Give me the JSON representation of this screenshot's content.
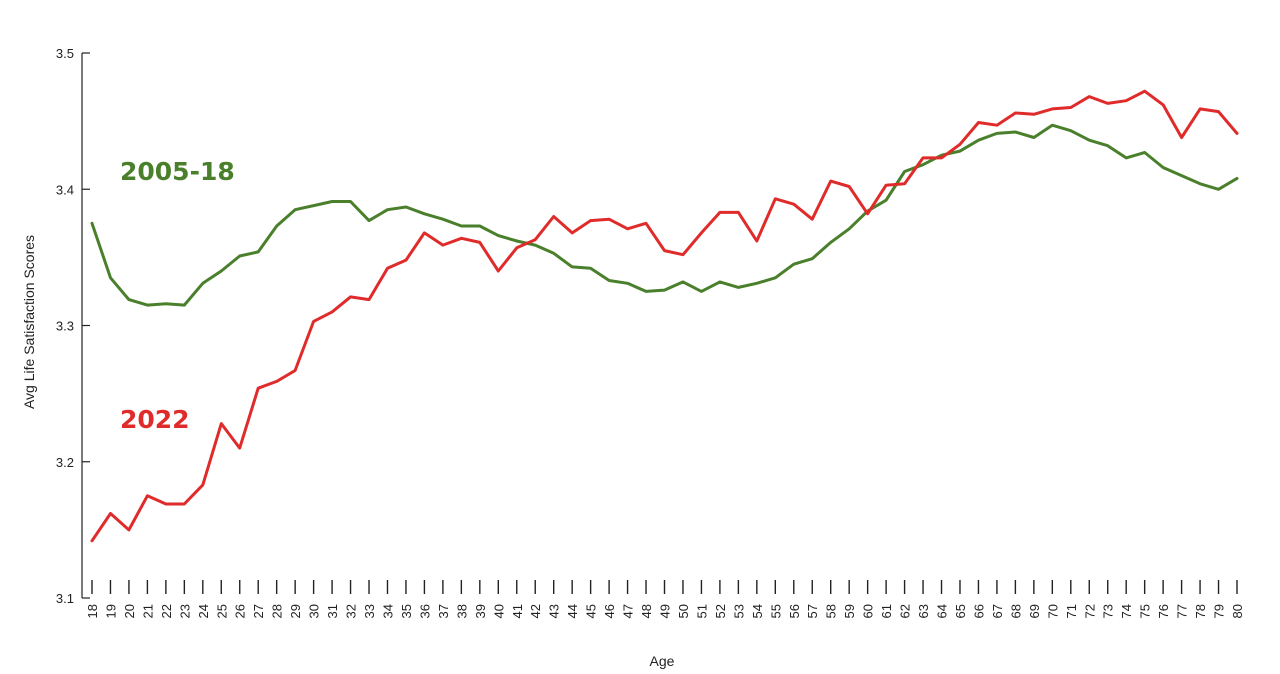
{
  "chart_data": {
    "type": "line",
    "xlabel": "Age",
    "ylabel": "Avg Life Satisfaction Scores",
    "ylim": [
      3.1,
      3.5
    ],
    "yticks": [
      "3.1",
      "3.2",
      "3.3",
      "3.4",
      "3.5"
    ],
    "x": [
      18,
      19,
      20,
      21,
      22,
      23,
      24,
      25,
      26,
      27,
      28,
      29,
      30,
      31,
      32,
      33,
      34,
      35,
      36,
      37,
      38,
      39,
      40,
      41,
      42,
      43,
      44,
      45,
      46,
      47,
      48,
      49,
      50,
      51,
      52,
      53,
      54,
      55,
      56,
      57,
      58,
      59,
      60,
      61,
      62,
      63,
      64,
      65,
      66,
      67,
      68,
      69,
      70,
      71,
      72,
      73,
      74,
      75,
      76,
      77,
      78,
      79,
      80
    ],
    "grid": false,
    "legend": "inline labels",
    "series": [
      {
        "name": "2005-18",
        "color": "#4a7f2c",
        "values": [
          3.375,
          3.335,
          3.319,
          3.315,
          3.316,
          3.315,
          3.331,
          3.34,
          3.351,
          3.354,
          3.373,
          3.385,
          3.388,
          3.391,
          3.391,
          3.377,
          3.385,
          3.387,
          3.382,
          3.378,
          3.373,
          3.373,
          3.366,
          3.362,
          3.359,
          3.353,
          3.343,
          3.342,
          3.333,
          3.331,
          3.325,
          3.326,
          3.332,
          3.325,
          3.332,
          3.328,
          3.331,
          3.335,
          3.345,
          3.349,
          3.361,
          3.371,
          3.384,
          3.392,
          3.413,
          3.418,
          3.425,
          3.428,
          3.436,
          3.441,
          3.442,
          3.438,
          3.447,
          3.443,
          3.436,
          3.432,
          3.423,
          3.427,
          3.416,
          3.41,
          3.404,
          3.4,
          3.408
        ]
      },
      {
        "name": "2022",
        "color": "#e02b2b",
        "values": [
          3.142,
          3.162,
          3.15,
          3.175,
          3.169,
          3.169,
          3.183,
          3.228,
          3.21,
          3.254,
          3.259,
          3.267,
          3.303,
          3.31,
          3.321,
          3.319,
          3.342,
          3.348,
          3.368,
          3.359,
          3.364,
          3.361,
          3.34,
          3.357,
          3.363,
          3.38,
          3.368,
          3.377,
          3.378,
          3.371,
          3.375,
          3.355,
          3.352,
          3.368,
          3.383,
          3.383,
          3.362,
          3.393,
          3.389,
          3.378,
          3.406,
          3.402,
          3.382,
          3.403,
          3.404,
          3.423,
          3.423,
          3.433,
          3.449,
          3.447,
          3.456,
          3.455,
          3.459,
          3.46,
          3.468,
          3.463,
          3.465,
          3.472,
          3.462,
          3.438,
          3.459,
          3.457,
          3.441
        ]
      }
    ]
  }
}
